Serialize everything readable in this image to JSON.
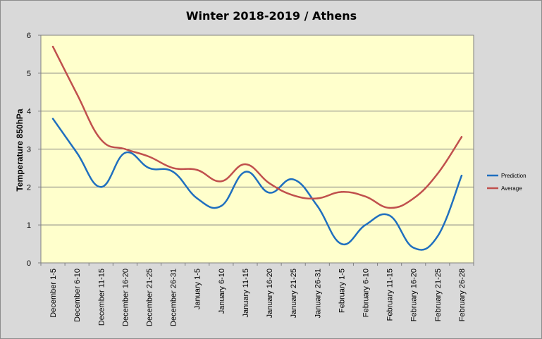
{
  "chart_data": {
    "type": "line",
    "title": "Winter 2018-2019 / Athens",
    "xlabel": "",
    "ylabel": "Temperature 850hPa",
    "ylim": [
      0,
      6
    ],
    "yticks": [
      0,
      1,
      2,
      3,
      4,
      5,
      6
    ],
    "grid": true,
    "legend_position": "right",
    "plot_background": "#ffffcc",
    "chart_background": "#d9d9d9",
    "categories": [
      "December 1-5",
      "December 6-10",
      "December 11-15",
      "December 16-20",
      "December 21-25",
      "December 26-31",
      "January 1-5",
      "January 6-10",
      "January 11-15",
      "January 16-20",
      "January 21-25",
      "January 26-31",
      "February 1-5",
      "February 6-10",
      "February 11-15",
      "February 16-20",
      "February 21-25",
      "February 26-28"
    ],
    "series": [
      {
        "name": "Prediction",
        "color": "#1f6fbf",
        "values": [
          3.8,
          2.9,
          2.0,
          2.9,
          2.5,
          2.4,
          1.7,
          1.5,
          2.4,
          1.85,
          2.2,
          1.5,
          0.5,
          1.0,
          1.25,
          0.4,
          0.7,
          2.3
        ]
      },
      {
        "name": "Average",
        "color": "#c0504d",
        "values": [
          5.7,
          4.45,
          3.25,
          3.0,
          2.8,
          2.5,
          2.45,
          2.15,
          2.6,
          2.1,
          1.78,
          1.7,
          1.87,
          1.75,
          1.45,
          1.7,
          2.35,
          3.32
        ]
      }
    ]
  }
}
